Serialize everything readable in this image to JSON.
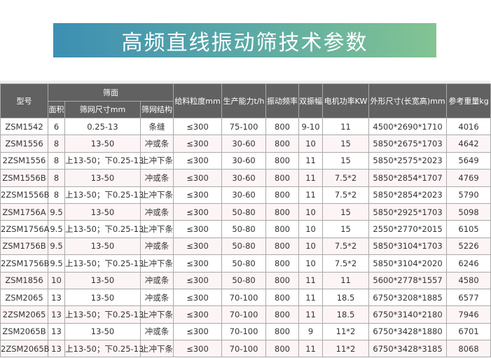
{
  "title": "高频直线振动筛技术参数",
  "table": {
    "headers": {
      "model": "型号",
      "screen_group": "筛面",
      "area": "面积",
      "mesh_size": "筛网尺寸mm",
      "mesh_structure": "筛网结构",
      "feed_size": "给料粒度mm",
      "capacity": "生产能力t/h",
      "frequency": "振动频率",
      "amplitude": "双振幅",
      "motor_power": "电机功率KW",
      "dimensions": "外形尺寸(长宽高)mm",
      "weight": "参考重量kg"
    },
    "rows": [
      [
        "ZSM1542",
        "6",
        "0.25-13",
        "条缝",
        "≤300",
        "75-100",
        "800",
        "9-10",
        "11",
        "4500*2690*1710",
        "4016"
      ],
      [
        "ZSM1556",
        "8",
        "13-50",
        "冲或条",
        "≤300",
        "30-60",
        "800",
        "10",
        "15",
        "5850*2675*1703",
        "4642"
      ],
      [
        "2ZSM1556",
        "8",
        "上13-50；下0.25-13",
        "上冲下条",
        "≤300",
        "30-60",
        "800",
        "11",
        "15",
        "5850*2575*2023",
        "5649"
      ],
      [
        "ZSM1556B",
        "8",
        "13-50",
        "冲或条",
        "≤300",
        "30-60",
        "800",
        "11",
        "7.5*2",
        "5850*2854*1707",
        "4769"
      ],
      [
        "2ZSM1556B",
        "8",
        "上13-50；下0.25-13",
        "上冲下条",
        "≤300",
        "30-60",
        "800",
        "11",
        "7.5*2",
        "5850*2854*2023",
        "5790"
      ],
      [
        "ZSM1756A",
        "9.5",
        "13-50",
        "冲或条",
        "≤300",
        "50-80",
        "800",
        "10",
        "15",
        "5850*2925*1703",
        "5098"
      ],
      [
        "2ZSM1756A",
        "9.5",
        "上13-50；下0.25-13",
        "上冲下条",
        "≤300",
        "50-80",
        "800",
        "10",
        "15",
        "2550*2770*2015",
        "6105"
      ],
      [
        "ZSM1756B",
        "9.5",
        "13-50",
        "冲或条",
        "≤300",
        "50-80",
        "800",
        "10",
        "7.5*2",
        "5850*3104*1703",
        "5226"
      ],
      [
        "2ZSM1756B",
        "9.5",
        "上13-50；下0.25-13",
        "上冲下条",
        "≤300",
        "50-80",
        "800",
        "10",
        "7.5*2",
        "5850*3104*2020",
        "6246"
      ],
      [
        "ZSM1856",
        "10",
        "13-50",
        "冲或条",
        "≤300",
        "50-80",
        "800",
        "11",
        "11",
        "5600*2778*1557",
        "4580"
      ],
      [
        "ZSM2065",
        "13",
        "13-50",
        "冲或条",
        "≤300",
        "70-100",
        "800",
        "11",
        "18.5",
        "6750*3208*1885",
        "6577"
      ],
      [
        "2ZSM2065",
        "13",
        "上13-50；下0.25-13",
        "上冲下条",
        "≤300",
        "70-100",
        "800",
        "11",
        "18.5",
        "6750*3140*2180",
        "7946"
      ],
      [
        "ZSM2065B",
        "13",
        "13-50",
        "冲或条",
        "≤300",
        "70-100",
        "800",
        "9",
        "11*2",
        "6750*3428*1880",
        "6701"
      ],
      [
        "2ZSM2065B",
        "13",
        "上13-50；下0.25-13",
        "上冲下条",
        "≤300",
        "70-100",
        "800",
        "11",
        "11*2",
        "6750*3428*3185",
        "8068"
      ]
    ]
  }
}
